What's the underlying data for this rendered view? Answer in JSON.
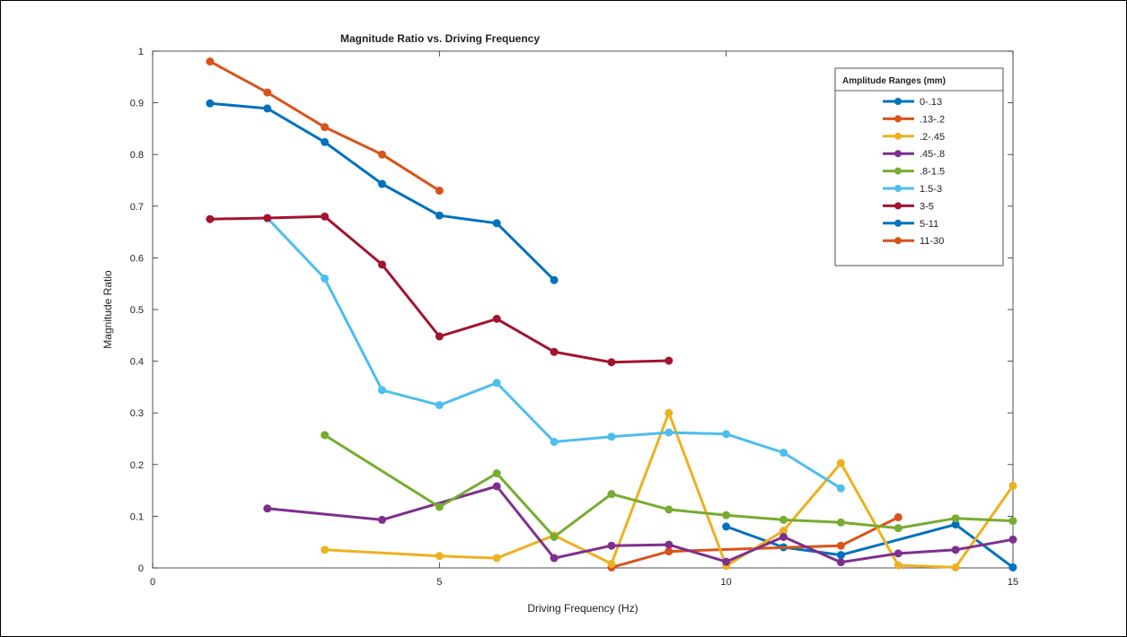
{
  "chart_data": {
    "type": "line",
    "title": "Magnitude Ratio vs. Driving Frequency",
    "xlabel": "Driving Frequency (Hz)",
    "ylabel": "Magnitude Ratio",
    "xlim": [
      0,
      15
    ],
    "ylim": [
      0,
      1
    ],
    "xticks": [
      0,
      5,
      10,
      15
    ],
    "yticks": [
      0,
      0.1,
      0.2,
      0.3,
      0.4,
      0.5,
      0.6,
      0.7,
      0.8,
      0.9,
      1
    ],
    "xtick_labels": [
      "0",
      "5",
      "10",
      "15"
    ],
    "ytick_labels": [
      "0",
      "0.1",
      "0.2",
      "0.3",
      "0.4",
      "0.5",
      "0.6",
      "0.7",
      "0.8",
      "0.9",
      "1"
    ],
    "grid": false,
    "legend": {
      "title": "Amplitude Ranges (mm)",
      "placement": "top-right"
    },
    "series": [
      {
        "name": "0-.13",
        "color": "#0072BD",
        "x": [
          10,
          11,
          12,
          14,
          15
        ],
        "y": [
          0.08,
          0.04,
          0.025,
          0.084,
          0.001
        ]
      },
      {
        "name": ".13-.2",
        "color": "#D95319",
        "x": [
          8,
          9,
          12,
          13
        ],
        "y": [
          0.001,
          0.032,
          0.043,
          0.098
        ]
      },
      {
        "name": ".2-.45",
        "color": "#EDB120",
        "x": [
          3,
          5,
          6,
          7,
          8,
          9,
          10,
          11,
          12,
          13,
          14,
          15
        ],
        "y": [
          0.035,
          0.023,
          0.019,
          0.063,
          0.008,
          0.3,
          0.004,
          0.072,
          0.203,
          0.005,
          0.001,
          0.159
        ]
      },
      {
        "name": ".45-.8",
        "color": "#7E2F8E",
        "x": [
          2,
          4,
          6,
          7,
          8,
          9,
          10,
          11,
          12,
          13,
          14,
          15
        ],
        "y": [
          0.115,
          0.093,
          0.158,
          0.019,
          0.043,
          0.045,
          0.012,
          0.06,
          0.011,
          0.028,
          0.035,
          0.055
        ]
      },
      {
        "name": ".8-1.5",
        "color": "#77AC30",
        "x": [
          3,
          5,
          6,
          7,
          8,
          9,
          10,
          11,
          12,
          13,
          14,
          15
        ],
        "y": [
          0.257,
          0.118,
          0.183,
          0.06,
          0.143,
          0.113,
          0.102,
          0.093,
          0.088,
          0.077,
          0.096,
          0.091
        ]
      },
      {
        "name": "1.5-3",
        "color": "#4DBEEE",
        "x": [
          2,
          3,
          4,
          5,
          6,
          7,
          8,
          9,
          10,
          11,
          12
        ],
        "y": [
          0.677,
          0.56,
          0.344,
          0.315,
          0.358,
          0.244,
          0.254,
          0.262,
          0.259,
          0.223,
          0.154
        ]
      },
      {
        "name": "3-5",
        "color": "#A2142F",
        "x": [
          1,
          2,
          3,
          4,
          5,
          6,
          7,
          8,
          9
        ],
        "y": [
          0.675,
          0.677,
          0.68,
          0.587,
          0.448,
          0.482,
          0.418,
          0.398,
          0.401
        ]
      },
      {
        "name": "5-11",
        "color": "#0072BD",
        "x": [
          1,
          2,
          3,
          4,
          5,
          6,
          7
        ],
        "y": [
          0.899,
          0.889,
          0.824,
          0.743,
          0.682,
          0.667,
          0.557
        ]
      },
      {
        "name": "11-30",
        "color": "#D95319",
        "x": [
          1,
          2,
          3,
          4,
          5
        ],
        "y": [
          0.98,
          0.92,
          0.853,
          0.8,
          0.73
        ]
      }
    ]
  }
}
